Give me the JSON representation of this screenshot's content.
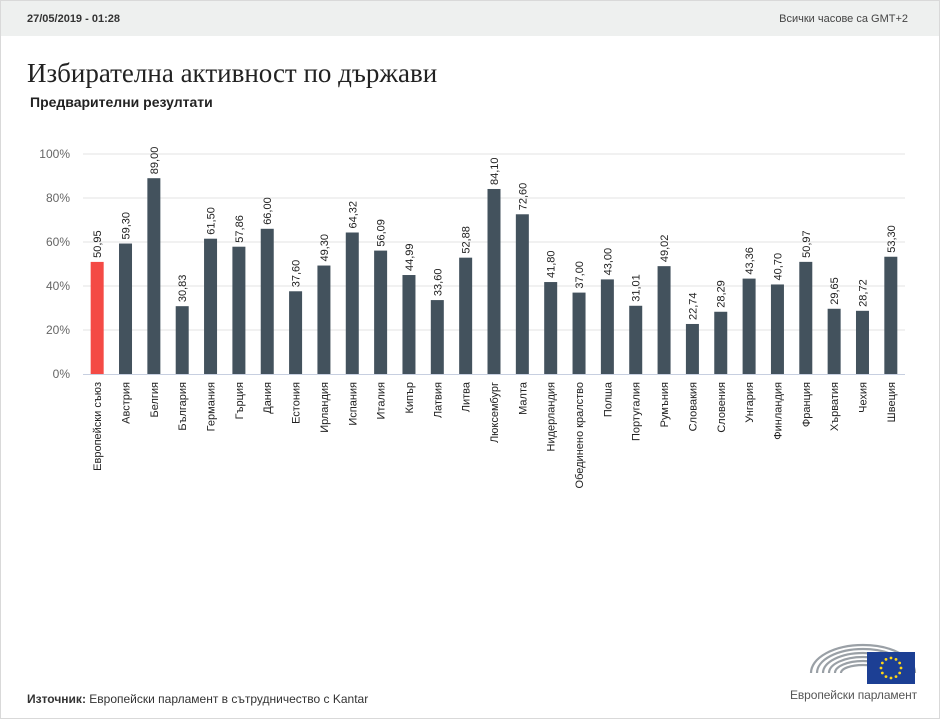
{
  "header": {
    "timestamp": "27/05/2019 - 01:28",
    "timezone_note": "Всички часове са GMT+2"
  },
  "title": "Избирателна активност по държави",
  "subtitle": "Предварителни резултати",
  "footer": {
    "source_label": "Източник:",
    "source_text": "Европейски парламент в сътрудничество с Kantar",
    "logo_text": "Европейски парламент"
  },
  "colors": {
    "highlight": "#f44a45",
    "bar": "#43525d",
    "grid": "#e3e3e3",
    "axis": "#c7cfe0",
    "eu_blue": "#1c3f94",
    "eu_star": "#ffd617"
  },
  "chart_data": {
    "type": "bar",
    "title": "Избирателна активност по държави",
    "subtitle": "Предварителни резултати",
    "xlabel": "",
    "ylabel": "",
    "ylim": [
      0,
      100
    ],
    "yticks": [
      0,
      20,
      40,
      60,
      80,
      100
    ],
    "ytick_labels": [
      "0%",
      "20%",
      "40%",
      "60%",
      "80%",
      "100%"
    ],
    "grid": true,
    "legend": "none",
    "categories": [
      "Европейски съюз",
      "Австрия",
      "Белгия",
      "България",
      "Германия",
      "Гърция",
      "Дания",
      "Естония",
      "Ирландия",
      "Испания",
      "Италия",
      "Кипър",
      "Латвия",
      "Литва",
      "Люксембург",
      "Малта",
      "Нидерландия",
      "Обединено кралство",
      "Полша",
      "Португалия",
      "Румъния",
      "Словакия",
      "Словения",
      "Унгария",
      "Финландия",
      "Франция",
      "Хърватия",
      "Чехия",
      "Швеция"
    ],
    "values": [
      50.95,
      59.3,
      89.0,
      30.83,
      61.5,
      57.86,
      66.0,
      37.6,
      49.3,
      64.32,
      56.09,
      44.99,
      33.6,
      52.88,
      84.1,
      72.6,
      41.8,
      37.0,
      43.0,
      31.01,
      49.02,
      22.74,
      28.29,
      43.36,
      40.7,
      50.97,
      29.65,
      28.72,
      53.3
    ],
    "value_labels": [
      "50,95",
      "59,30",
      "89,00",
      "30,83",
      "61,50",
      "57,86",
      "66,00",
      "37,60",
      "49,30",
      "64,32",
      "56,09",
      "44,99",
      "33,60",
      "52,88",
      "84,10",
      "72,60",
      "41,80",
      "37,00",
      "43,00",
      "31,01",
      "49,02",
      "22,74",
      "28,29",
      "43,36",
      "40,70",
      "50,97",
      "29,65",
      "28,72",
      "53,30"
    ],
    "highlight_index": 0
  }
}
